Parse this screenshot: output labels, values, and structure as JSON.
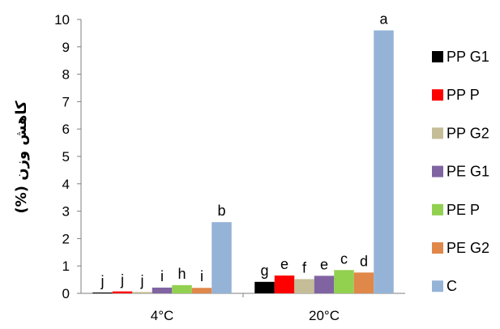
{
  "chart_data": {
    "type": "bar",
    "title": "",
    "xlabel": "",
    "ylabel": "کاهش وزن (%)",
    "ylim": [
      0,
      10
    ],
    "yticks": [
      "0",
      "1",
      "2",
      "3",
      "4",
      "5",
      "6",
      "7",
      "8",
      "9",
      "10"
    ],
    "categories": [
      "4°C",
      "20°C"
    ],
    "grid": false,
    "legend_position": "right",
    "series": [
      {
        "name": "PP G1",
        "color": "#000000",
        "values": [
          0.03,
          0.42
        ],
        "labels": [
          "j",
          "g"
        ]
      },
      {
        "name": "PP P",
        "color": "#ff0000",
        "values": [
          0.07,
          0.65
        ],
        "labels": [
          "j",
          "e"
        ]
      },
      {
        "name": "PP G2",
        "color": "#c4bd97",
        "values": [
          0.05,
          0.52
        ],
        "labels": [
          "j",
          "f"
        ]
      },
      {
        "name": "PE G1",
        "color": "#8064a2",
        "values": [
          0.21,
          0.64
        ],
        "labels": [
          "i",
          "e"
        ]
      },
      {
        "name": "PE P",
        "color": "#92d050",
        "values": [
          0.3,
          0.85
        ],
        "labels": [
          "h",
          "c"
        ]
      },
      {
        "name": "PE G2",
        "color": "#e0874a",
        "values": [
          0.2,
          0.76
        ],
        "labels": [
          "i",
          "d"
        ]
      },
      {
        "name": "C",
        "color": "#95b3d7",
        "values": [
          2.6,
          9.6
        ],
        "labels": [
          "b",
          "a"
        ]
      }
    ]
  }
}
